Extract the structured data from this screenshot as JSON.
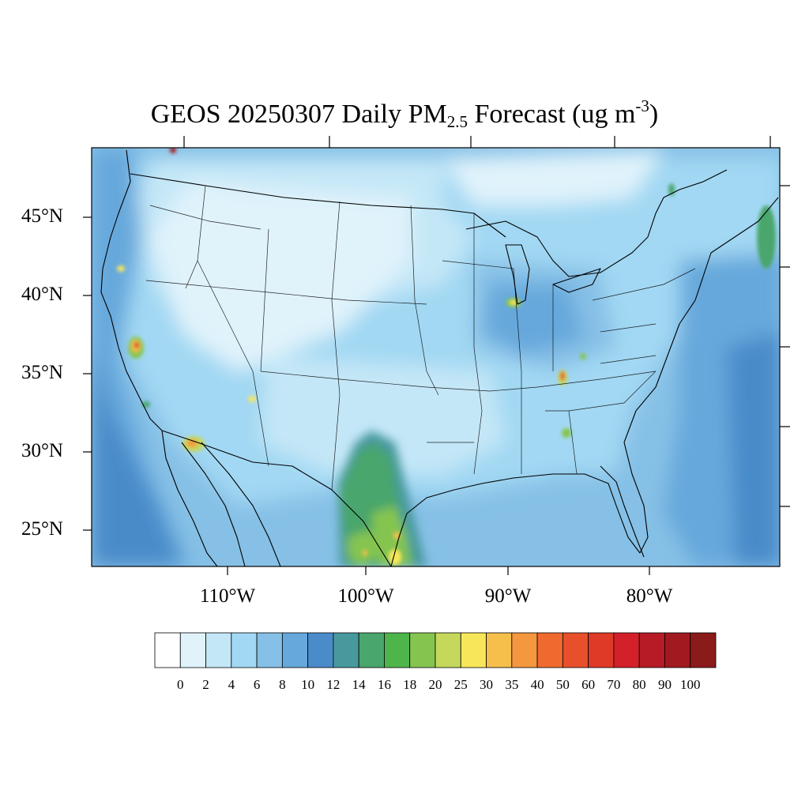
{
  "title": {
    "prefix": "GEOS 20250307 Daily PM",
    "subscript": "2.5",
    "middle": " Forecast (ug m",
    "superscript": "-3",
    "suffix": ")"
  },
  "map": {
    "projection": "Lambert conformal (CONUS)",
    "extent": {
      "lon_min": -120,
      "lon_max": -72,
      "lat_min": 23,
      "lat_max": 50
    },
    "latitude_labels": [
      "45°N",
      "40°N",
      "35°N",
      "30°N",
      "25°N"
    ],
    "longitude_labels": [
      "110°W",
      "100°W",
      "90°W",
      "80°W"
    ],
    "background_level": "2-8 ug m-3 over most of the domain",
    "hotspots": [
      {
        "region": "Northern California / Oregon",
        "level": "25-70"
      },
      {
        "region": "Central California (Sierra foothills)",
        "level": "50-100"
      },
      {
        "region": "Southern Arizona / Mexico border",
        "level": "25-60"
      },
      {
        "region": "Northern Mexico / South Texas",
        "level": "16-35"
      },
      {
        "region": "Chicago / southern Lake Michigan",
        "level": "20-30"
      },
      {
        "region": "Tennessee",
        "level": "25-60"
      },
      {
        "region": "Georgia / Alabama",
        "level": "16-30"
      },
      {
        "region": "Northern Idaho/Montana border",
        "level": "70-100"
      }
    ]
  },
  "colorbar": {
    "labels": [
      "0",
      "2",
      "4",
      "6",
      "8",
      "10",
      "12",
      "14",
      "16",
      "18",
      "20",
      "25",
      "30",
      "35",
      "40",
      "50",
      "60",
      "70",
      "80",
      "90",
      "100"
    ],
    "colors": [
      "#ffffff",
      "#e0f3fb",
      "#c4e7f7",
      "#a2d8f3",
      "#86c0e6",
      "#66a8dc",
      "#4a8bc9",
      "#47999e",
      "#4aa66c",
      "#4eb54a",
      "#85c54f",
      "#c5d85b",
      "#f8e65a",
      "#f6bf4c",
      "#f4973e",
      "#f06a30",
      "#e8502c",
      "#df3a28",
      "#d4202a",
      "#b71b25",
      "#a01a20",
      "#8b1a1a"
    ]
  }
}
